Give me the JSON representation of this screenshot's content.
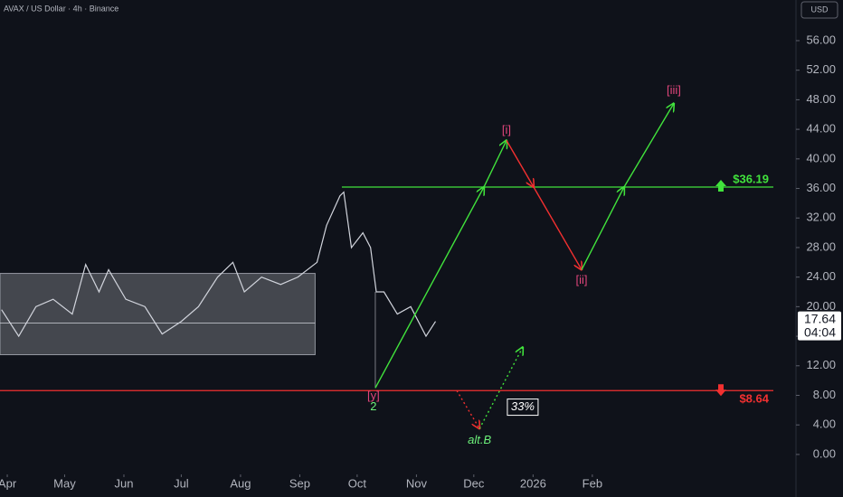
{
  "chart_data": {
    "type": "line",
    "title": "AVAX / US Dollar · 4h · Binance",
    "currency": "USD",
    "color": "#d1d4dc",
    "x": [
      -3,
      6,
      15,
      24,
      34,
      41,
      48,
      53,
      62,
      72,
      81,
      91,
      100,
      110,
      118,
      124,
      133,
      143,
      152,
      162,
      167,
      174,
      176,
      180,
      186,
      190,
      193,
      197,
      204,
      211,
      219,
      224
    ],
    "values": [
      19.6,
      16,
      20,
      21,
      19,
      25.7,
      22,
      25,
      21,
      20,
      16.3,
      18,
      20,
      24,
      26,
      22,
      24,
      23,
      24,
      26,
      31,
      35,
      35.5,
      28,
      30,
      28,
      22,
      22,
      19,
      20,
      16,
      18
    ],
    "xlim": [
      -3.8,
      412.5
    ],
    "xticks": [
      {
        "value": 0,
        "label": "Apr"
      },
      {
        "value": 30,
        "label": "May"
      },
      {
        "value": 61,
        "label": "Jun"
      },
      {
        "value": 91,
        "label": "Jul"
      },
      {
        "value": 122,
        "label": "Aug"
      },
      {
        "value": 153,
        "label": "Sep"
      },
      {
        "value": 183,
        "label": "Oct"
      },
      {
        "value": 214,
        "label": "Nov"
      },
      {
        "value": 244,
        "label": "Dec"
      },
      {
        "value": 275,
        "label": "2026"
      },
      {
        "value": 306,
        "label": "Feb"
      }
    ],
    "ylim": [
      -2.7,
      61.5
    ],
    "yticks": [
      {
        "value": 0,
        "label": "0.00"
      },
      {
        "value": 4,
        "label": "4.00"
      },
      {
        "value": 8,
        "label": "8.00"
      },
      {
        "value": 12,
        "label": "12.00"
      },
      {
        "value": 16,
        "label": "16.00"
      },
      {
        "value": 20,
        "label": "20.00"
      },
      {
        "value": 24,
        "label": "24.00"
      },
      {
        "value": 28,
        "label": "28.00"
      },
      {
        "value": 32,
        "label": "32.00"
      },
      {
        "value": 36,
        "label": "36.00"
      },
      {
        "value": 40,
        "label": "40.00"
      },
      {
        "value": 44,
        "label": "44.00"
      },
      {
        "value": 48,
        "label": "48.00"
      },
      {
        "value": 52,
        "label": "52.00"
      },
      {
        "value": 56,
        "label": "56.00"
      }
    ],
    "range_box": {
      "low": 13.5,
      "high": 24.5,
      "mid": 17.8,
      "x_start": -3.8,
      "x_end": 161
    },
    "levels": [
      {
        "value": 36.19,
        "label": "$36.19",
        "color": "#41e33c",
        "x_start": 175
      },
      {
        "value": 8.64,
        "label": "$8.64",
        "color": "#f23030",
        "x_start": -3.8
      }
    ],
    "waves": [
      {
        "color": "#41e33c",
        "x": [
          192.5,
          249.3,
          261.1
        ],
        "y": [
          9,
          36.19,
          42.5
        ]
      },
      {
        "color": "#f23030",
        "x": [
          261.1,
          275.3,
          300.4
        ],
        "y": [
          42.5,
          36.19,
          25
        ]
      },
      {
        "color": "#41e33c",
        "x": [
          300.4,
          322.6,
          348.6
        ],
        "y": [
          25,
          36.19,
          47.5
        ]
      },
      {
        "color": "#f23030",
        "x": [
          235.1,
          247
        ],
        "y": [
          8.64,
          3.5
        ],
        "dotted": true
      },
      {
        "color": "#41e33c",
        "x": [
          247,
          269.6
        ],
        "y": [
          3.5,
          14.5
        ],
        "dotted": true
      }
    ],
    "wave_labels": [
      {
        "text": "[i]",
        "x": 261.1,
        "y": 43.8,
        "color": "#e0457b"
      },
      {
        "text": "[ii]",
        "x": 300.4,
        "y": 23.5,
        "color": "#e0457b"
      },
      {
        "text": "[iii]",
        "x": 348.6,
        "y": 49.2,
        "color": "#e0457b"
      },
      {
        "text": "[y]",
        "x": 191.5,
        "y": 7.9,
        "color": "#e0457b"
      },
      {
        "text": "2",
        "x": 191.5,
        "y": 6.4,
        "color": "#6cf07a"
      },
      {
        "text": "alt.B",
        "x": 247,
        "y": 1.9,
        "color": "#6cf07a"
      },
      {
        "text": "33%",
        "x": 269.6,
        "y": 6.4,
        "color": "#ffffff",
        "boxed": true
      }
    ],
    "last_price": {
      "value": 17.64,
      "label": "17.64",
      "countdown": "04:04"
    }
  }
}
